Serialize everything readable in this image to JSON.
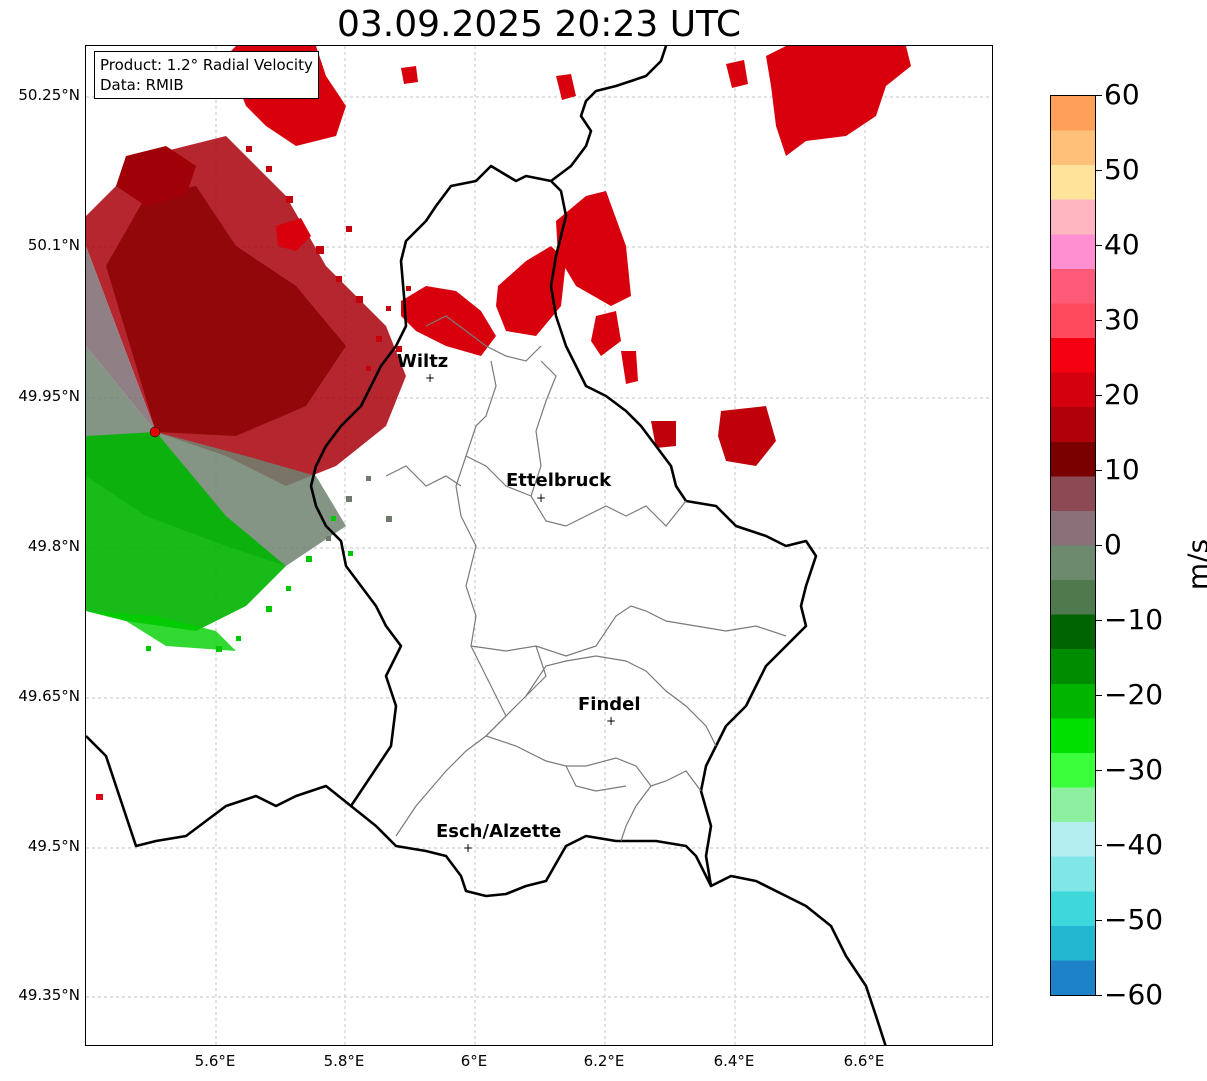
{
  "title": "03.09.2025 20:23 UTC",
  "info_box": {
    "product": "Product: 1.2° Radial Velocity",
    "data": "Data: RMIB"
  },
  "axes": {
    "y_ticks": [
      "50.25°N",
      "50.1°N",
      "49.95°N",
      "49.8°N",
      "49.65°N",
      "49.5°N",
      "49.35°N"
    ],
    "x_ticks": [
      "5.6°E",
      "5.8°E",
      "6°E",
      "6.2°E",
      "6.4°E",
      "6.6°E"
    ]
  },
  "cities": [
    {
      "name": "Wiltz",
      "lon": 5.93,
      "lat": 49.966
    },
    {
      "name": "Ettelbruck",
      "lon": 6.1,
      "lat": 49.848
    },
    {
      "name": "Findel",
      "lon": 6.21,
      "lat": 49.626
    },
    {
      "name": "Esch/Alzette",
      "lon": 5.99,
      "lat": 49.499
    }
  ],
  "radar_site": {
    "lon": 5.505,
    "lat": 49.914
  },
  "colorbar": {
    "label": "m/s",
    "ticks": [
      "60",
      "50",
      "40",
      "30",
      "20",
      "10",
      "0",
      "−10",
      "−20",
      "−30",
      "−40",
      "−50",
      "−60"
    ],
    "min": -60,
    "max": 60,
    "colors_top_to_bottom": [
      "#ff9f5a",
      "#ffc07a",
      "#ffe39a",
      "#ffb6c0",
      "#ff8fd0",
      "#ff5a78",
      "#ff4a5e",
      "#f40010",
      "#d4000e",
      "#b0000a",
      "#7a0000",
      "#8c4a54",
      "#8a7078",
      "#6e8a6e",
      "#4e7a4e",
      "#006400",
      "#008c00",
      "#00b400",
      "#00e000",
      "#3cff3c",
      "#8cf0a0",
      "#b4eef0",
      "#80e6e6",
      "#3cd8dc",
      "#22b6d0",
      "#1e82c8"
    ]
  }
}
